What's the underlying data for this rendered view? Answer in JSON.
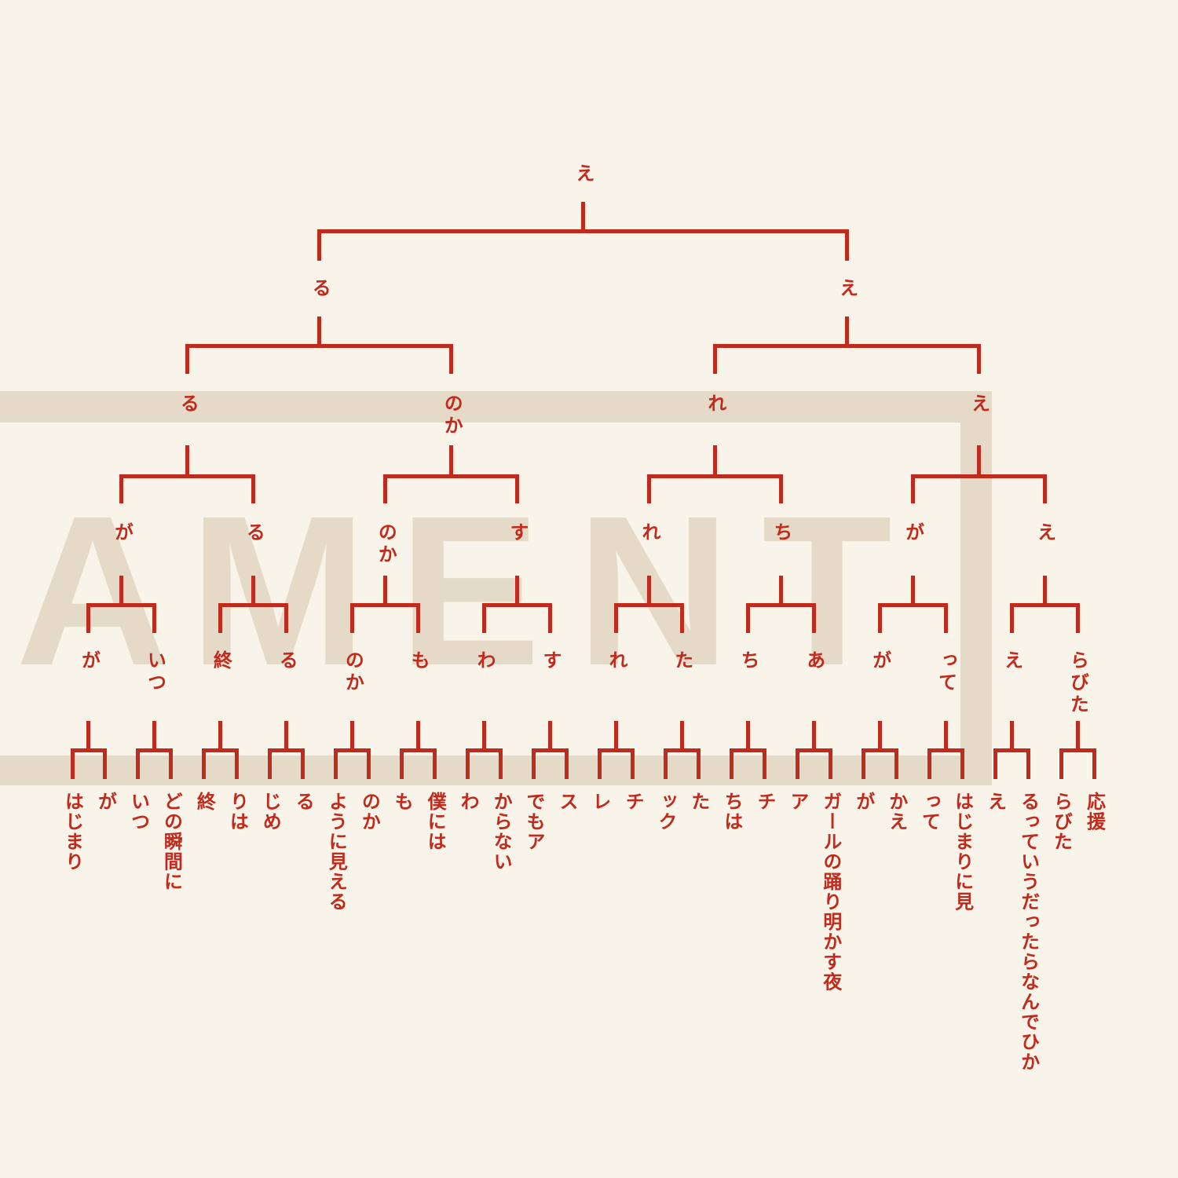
{
  "poster": {
    "background_color": "#f8f4e9",
    "line_color": "#c12b1d",
    "watermark_color": "#e4dac7"
  },
  "watermark": {
    "letters": [
      "A",
      "M",
      "E",
      "N",
      "T"
    ]
  },
  "bracket": {
    "champion": "え",
    "round_semifinal": [
      "る",
      "え"
    ],
    "round_quarterfinal": [
      "る",
      "のか",
      "れ",
      "え"
    ],
    "round_16": [
      "が",
      "る",
      "のか",
      "す",
      "れ",
      "ち",
      "が",
      "え"
    ],
    "round_32": [
      "が",
      "いつ",
      "終",
      "る",
      "のか",
      "も",
      "わ",
      "す",
      "れ",
      "た",
      "ち",
      "あ",
      "が",
      "って",
      "え",
      "らびた"
    ],
    "entries": [
      "はじまり",
      "が",
      "いつ",
      "どの瞬間に",
      "終",
      "りは",
      "じめ",
      "る",
      "ように見える",
      "のか",
      "も",
      "僕には",
      "わ",
      "からない",
      "でもア",
      "ス",
      "レ",
      "チ",
      "ック",
      "た",
      "ちは",
      "チ",
      "ア",
      "ガールの踊り明かす夜",
      "が",
      "かえ",
      "って",
      "はじまりに見",
      "え",
      "るっていうだったらなんでひか",
      "らびた",
      "応援"
    ]
  }
}
